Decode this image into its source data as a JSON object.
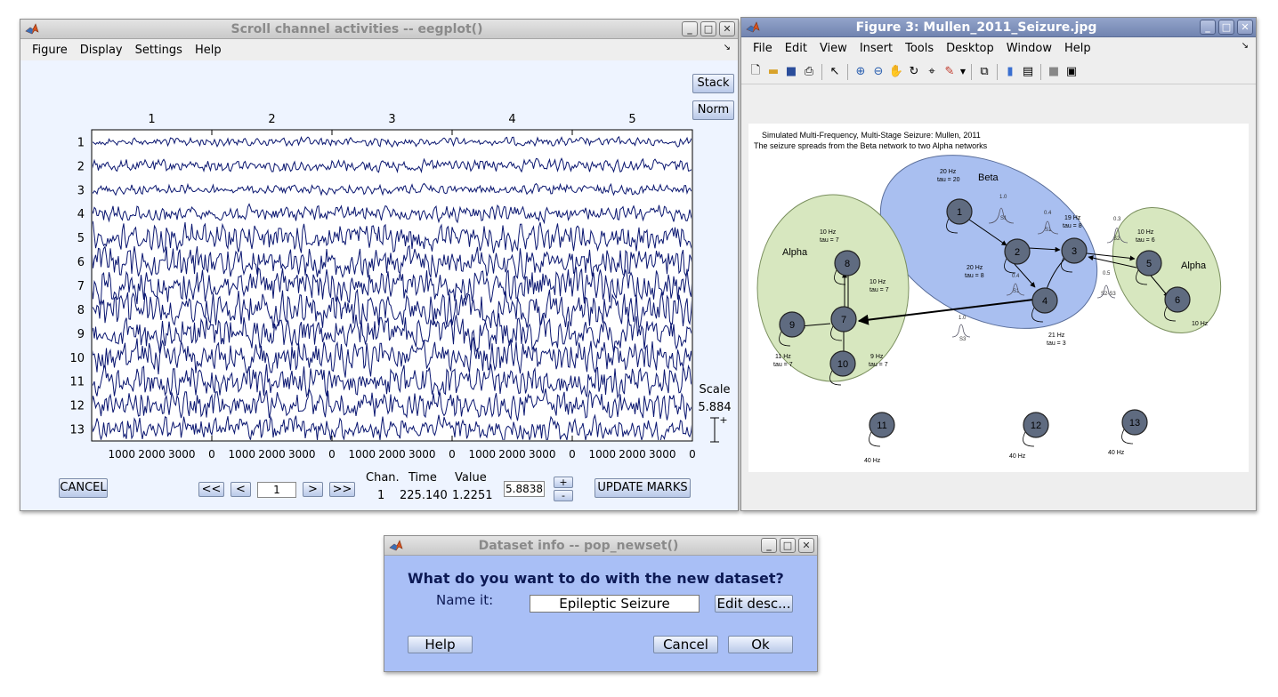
{
  "eegplot": {
    "title": "Scroll channel activities -- eegplot()",
    "menu": [
      "Figure",
      "Display",
      "Settings",
      "Help"
    ],
    "stack_label": "Stack",
    "norm_label": "Norm",
    "top_ticks": [
      "1",
      "2",
      "3",
      "4",
      "5"
    ],
    "channels": [
      "1",
      "2",
      "3",
      "4",
      "5",
      "6",
      "7",
      "8",
      "9",
      "10",
      "11",
      "12",
      "13"
    ],
    "bottom_groups": [
      [
        "1000",
        "2000",
        "3000",
        "0"
      ],
      [
        "1000",
        "2000",
        "3000",
        "0"
      ],
      [
        "1000",
        "2000",
        "3000",
        "0"
      ],
      [
        "1000",
        "2000",
        "3000",
        "0"
      ],
      [
        "1000",
        "2000",
        "3000",
        "0"
      ]
    ],
    "scale_label": "Scale",
    "scale_value": "5.884",
    "scale_plus": "+",
    "cancel_label": "CANCEL",
    "nav": {
      "first": "<<",
      "prev": "<",
      "page": "1",
      "next": ">",
      "last": ">>"
    },
    "readout": {
      "chan_header": "Chan.",
      "time_header": "Time",
      "value_header": "Value",
      "chan": "1",
      "time": "225.140",
      "value": "1.2251"
    },
    "scale_input": "5.8838",
    "plus_btn": "+",
    "minus_btn": "-",
    "update_label": "UPDATE MARKS",
    "trace_color": "#0a1670"
  },
  "figure3": {
    "title": "Figure 3: Mullen_2011_Seizure.jpg",
    "menu": [
      "File",
      "Edit",
      "View",
      "Insert",
      "Tools",
      "Desktop",
      "Window",
      "Help"
    ],
    "toolbar_icons": [
      "new-file-icon",
      "open-folder-icon",
      "save-icon",
      "print-icon",
      "pointer-icon",
      "zoom-in-icon",
      "zoom-out-icon",
      "pan-icon",
      "rotate-icon",
      "data-cursor-icon",
      "brush-icon",
      "dropdown-icon",
      "link-icon",
      "colorbar-icon",
      "legend-icon",
      "hide-tools-icon",
      "dock-icon"
    ],
    "diagram": {
      "title": "Simulated Multi-Frequency, Multi-Stage Seizure: Mullen, 2011",
      "subtitle": "The seizure spreads from the Beta network to two Alpha networks",
      "groups": {
        "beta": "Beta",
        "alpha_left": "Alpha",
        "alpha_right": "Alpha"
      },
      "nodes": [
        "1",
        "2",
        "3",
        "4",
        "5",
        "6",
        "7",
        "8",
        "9",
        "10",
        "11",
        "12",
        "13"
      ],
      "notes": {
        "n1": [
          "20 Hz",
          "tau = 20"
        ],
        "n8": [
          "10 Hz",
          "tau = 7"
        ],
        "n7": [
          "10 Hz",
          "tau = 7"
        ],
        "n2": [
          "20 Hz",
          "tau = 8"
        ],
        "n3": [
          "19 Hz",
          "tau = 8"
        ],
        "n5": [
          "10 Hz",
          "tau = 6"
        ],
        "n9": [
          "11 Hz",
          "tau = 7"
        ],
        "n10": [
          "9 Hz",
          "tau = 7"
        ],
        "n4": [
          "21 Hz",
          "tau = 3"
        ],
        "n6": [
          "10 Hz"
        ],
        "n11": [
          "40 Hz"
        ],
        "n12": [
          "40 Hz"
        ],
        "n13": [
          "40 Hz"
        ]
      },
      "coupling": {
        "c12": [
          "1.0",
          "S1"
        ],
        "c23": [
          "0.4",
          "S1"
        ],
        "c35": [
          "0.3",
          "S2"
        ],
        "c24": [
          "0.4",
          "S1"
        ],
        "c53": [
          "0.5",
          "S2-S3"
        ],
        "c47": [
          "1.0",
          "S3"
        ]
      }
    }
  },
  "dataset": {
    "title": "Dataset info -- pop_newset()",
    "question": "What do you want to do with the new dataset?",
    "name_label": "Name it:",
    "name_value": "Epileptic Seizure",
    "edit_desc_label": "Edit desc...",
    "help_label": "Help",
    "cancel_label": "Cancel",
    "ok_label": "Ok"
  }
}
